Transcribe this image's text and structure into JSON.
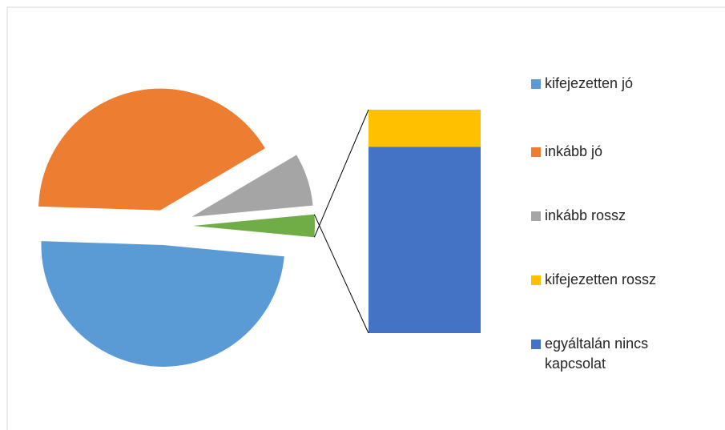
{
  "chart_data": {
    "type": "pie-of-bar",
    "series": [
      {
        "name": "kifejezetten jó",
        "color": "#5b9bd5",
        "value": 49
      },
      {
        "name": "inkább jó",
        "color": "#ed7d31",
        "value": 41
      },
      {
        "name": "inkább rossz",
        "color": "#a5a5a5",
        "value": 7
      },
      {
        "name": "kifejezetten rossz",
        "color": "#ffc000",
        "value": 0.5
      },
      {
        "name": "egyáltalán nincs kapcsolat",
        "color": "#4472c4",
        "value": 2.5
      }
    ],
    "bar_items": 2,
    "other_color": "#70ad47",
    "legend": "right"
  }
}
